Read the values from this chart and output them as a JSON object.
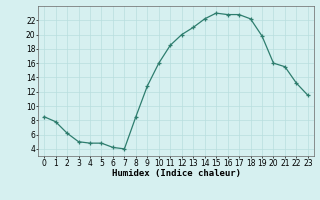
{
  "x": [
    0,
    1,
    2,
    3,
    4,
    5,
    6,
    7,
    8,
    9,
    10,
    11,
    12,
    13,
    14,
    15,
    16,
    17,
    18,
    19,
    20,
    21,
    22,
    23
  ],
  "y": [
    8.5,
    7.8,
    6.2,
    5.0,
    4.8,
    4.8,
    4.2,
    4.0,
    8.5,
    12.8,
    16.0,
    18.5,
    20.0,
    21.0,
    22.2,
    23.0,
    22.8,
    22.8,
    22.2,
    19.8,
    16.0,
    15.5,
    13.2,
    11.5
  ],
  "line_color": "#2e7d6e",
  "marker": "+",
  "bg_color": "#d6f0f0",
  "grid_color": "#b8dede",
  "xlabel": "Humidex (Indice chaleur)",
  "ylim": [
    3,
    24
  ],
  "xlim": [
    -0.5,
    23.5
  ],
  "yticks": [
    4,
    6,
    8,
    10,
    12,
    14,
    16,
    18,
    20,
    22
  ],
  "xticks": [
    0,
    1,
    2,
    3,
    4,
    5,
    6,
    7,
    8,
    9,
    10,
    11,
    12,
    13,
    14,
    15,
    16,
    17,
    18,
    19,
    20,
    21,
    22,
    23
  ],
  "label_fontsize": 6.5,
  "tick_fontsize": 5.5,
  "line_width": 0.9,
  "marker_size": 3,
  "marker_edge_width": 0.9
}
